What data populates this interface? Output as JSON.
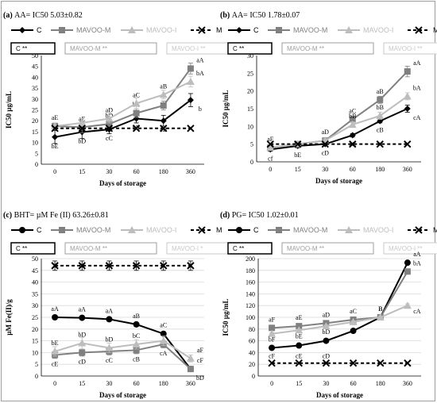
{
  "chart_data": [
    {
      "id": "a",
      "type": "line",
      "title_bold": "(a)",
      "title_rest": "AA= IC50 5.03±0.82",
      "xlabel": "Days of storage",
      "ylabel": "IC50 µg/mL",
      "categories": [
        "0",
        "15",
        "30",
        "60",
        "180",
        "360"
      ],
      "ylim": [
        0,
        50
      ],
      "yticks": [
        0,
        5,
        10,
        15,
        20,
        25,
        30,
        35,
        40,
        45,
        50
      ],
      "grid": false,
      "legend_placement": "top",
      "series": [
        {
          "name": "C",
          "color": "#000000",
          "marker": "diamond",
          "dash": "",
          "values": [
            12.5,
            14.8,
            16.0,
            21.0,
            20.0,
            29.5
          ],
          "errors": [
            3.0,
            3.0,
            2.0,
            2.0,
            2.5,
            3.0
          ],
          "labels": [
            "bE",
            "bD",
            "cC",
            "bB",
            "cB",
            "b"
          ]
        },
        {
          "name": "MAVOO-M",
          "color": "#808080",
          "marker": "square",
          "dash": "",
          "values": [
            17.5,
            17.0,
            18.5,
            23.5,
            27.0,
            44.0
          ],
          "errors": [
            1.5,
            2.5,
            2.0,
            2.0,
            2.0,
            2.5
          ],
          "labels": [
            "aE",
            "aE",
            "bD",
            "bC",
            "",
            "aA"
          ]
        },
        {
          "name": "MAVOO-I",
          "color": "#bdbdbd",
          "marker": "triangle",
          "dash": "",
          "values": [
            17.5,
            19.0,
            21.0,
            28.0,
            32.0,
            38.0
          ],
          "errors": [
            1.5,
            2.0,
            2.0,
            2.5,
            2.0,
            2.5
          ],
          "labels": [
            "",
            "",
            "aD",
            "aC",
            "aB",
            "bA"
          ]
        },
        {
          "name": "M",
          "color": "#000000",
          "marker": "x",
          "dash": "4,3",
          "values": [
            16.5,
            16.5,
            16.5,
            16.5,
            16.5,
            16.5
          ],
          "errors": [
            0,
            0,
            0,
            0,
            0,
            0
          ],
          "labels": [
            "",
            "",
            "",
            "",
            "",
            ""
          ]
        }
      ],
      "sig_boxes": [
        {
          "text": "C **",
          "color": "#000000"
        },
        {
          "text": "MAVOO-M **",
          "color": "#9e9e9e"
        },
        {
          "text": "MAVOO-I **",
          "color": "#c8c8c8"
        }
      ]
    },
    {
      "id": "b",
      "type": "line",
      "title_bold": "(b)",
      "title_rest": "AA= IC50 1.78±0.07",
      "xlabel": "Days of storage",
      "ylabel": "IC50 µg/mL",
      "categories": [
        "0",
        "15",
        "30",
        "60",
        "180",
        "360"
      ],
      "ylim": [
        0,
        30
      ],
      "yticks": [
        0,
        5,
        10,
        15,
        20,
        25,
        30
      ],
      "grid": false,
      "legend_placement": "top",
      "series": [
        {
          "name": "C",
          "color": "#000000",
          "marker": "diamond",
          "dash": "",
          "values": [
            3.5,
            4.5,
            5.0,
            7.5,
            11.5,
            15.0
          ],
          "errors": [
            0.5,
            0.5,
            0.5,
            0.5,
            0.5,
            1.0
          ],
          "labels": [
            "cf",
            "bE",
            "cD",
            "cC",
            "cB",
            "cA"
          ]
        },
        {
          "name": "MAVOO-M",
          "color": "#808080",
          "marker": "square",
          "dash": "",
          "values": [
            4.0,
            5.0,
            6.0,
            12.0,
            17.5,
            25.5
          ],
          "errors": [
            0.5,
            0.5,
            0.5,
            0.8,
            1.0,
            1.5
          ],
          "labels": [
            "aF",
            "",
            "aD",
            "aC",
            "aB",
            "aA"
          ]
        },
        {
          "name": "MAVOO-I",
          "color": "#bdbdbd",
          "marker": "triangle",
          "dash": "",
          "values": [
            4.0,
            5.0,
            6.0,
            10.5,
            13.0,
            18.5
          ],
          "errors": [
            0.5,
            0.5,
            0.5,
            0.8,
            1.0,
            1.0
          ],
          "labels": [
            "",
            "",
            "",
            "bB",
            "bB",
            "bA"
          ]
        },
        {
          "name": "M",
          "color": "#000000",
          "marker": "x",
          "dash": "4,3",
          "values": [
            5.0,
            5.0,
            5.0,
            5.0,
            5.0,
            5.0
          ],
          "errors": [
            0,
            0,
            0,
            0,
            0,
            0
          ],
          "labels": [
            "",
            "",
            "",
            "",
            "",
            ""
          ]
        }
      ],
      "sig_boxes": [
        {
          "text": "C **",
          "color": "#000000"
        },
        {
          "text": "MAVOO-M **",
          "color": "#9e9e9e"
        },
        {
          "text": "MAVOO-I **",
          "color": "#c8c8c8"
        }
      ]
    },
    {
      "id": "c",
      "type": "line",
      "title_bold": "(c)",
      "title_rest": "BHT= µM Fe (II) 63.26±0.81",
      "xlabel": "Days of storage",
      "ylabel": "µM Fe(II)/g",
      "categories": [
        "0",
        "15",
        "30",
        "60",
        "180",
        "360"
      ],
      "ylim": [
        0,
        50
      ],
      "yticks": [
        0,
        5,
        10,
        15,
        20,
        25,
        30,
        35,
        40,
        45,
        50
      ],
      "grid": true,
      "legend_placement": "top",
      "series": [
        {
          "name": "C",
          "color": "#000000",
          "marker": "circle",
          "dash": "",
          "values": [
            25.0,
            24.8,
            24.2,
            22.0,
            18.0,
            3.0
          ],
          "errors": [
            0.5,
            0.5,
            0.8,
            0.8,
            0.5,
            1.0
          ],
          "labels": [
            "aA",
            "aA",
            "aA",
            "aB",
            "aC",
            "cF"
          ]
        },
        {
          "name": "MAVOO-M",
          "color": "#808080",
          "marker": "square",
          "dash": "",
          "values": [
            9.0,
            10.0,
            10.5,
            11.0,
            13.5,
            3.0
          ],
          "errors": [
            1.5,
            1.5,
            1.5,
            1.5,
            1.5,
            1.0
          ],
          "labels": [
            "cE",
            "cD",
            "cC",
            "cB",
            "cA",
            "bD"
          ]
        },
        {
          "name": "MAVOO-I",
          "color": "#bdbdbd",
          "marker": "triangle",
          "dash": "",
          "values": [
            10.5,
            14.0,
            12.0,
            13.5,
            15.0,
            7.5
          ],
          "errors": [
            2.0,
            2.5,
            2.0,
            2.0,
            2.0,
            1.5
          ],
          "labels": [
            "bE",
            "bD",
            "bD",
            "bC",
            "",
            "aF"
          ]
        },
        {
          "name": "M",
          "color": "#000000",
          "marker": "x",
          "dash": "4,3",
          "values": [
            47.0,
            47.0,
            47.0,
            47.0,
            47.0,
            47.0
          ],
          "errors": [
            2.0,
            2.0,
            2.0,
            2.0,
            2.0,
            2.0
          ],
          "labels": [
            "",
            "",
            "",
            "",
            "",
            ""
          ]
        }
      ],
      "sig_boxes": [
        {
          "text": "C **",
          "color": "#000000"
        },
        {
          "text": "MAVOO-M **",
          "color": "#9e9e9e"
        },
        {
          "text": "MAVOO-I *",
          "color": "#c8c8c8"
        }
      ]
    },
    {
      "id": "d",
      "type": "line",
      "title_bold": "(d)",
      "title_rest": "PG= IC50 1.02±0.01",
      "xlabel": "Days of storage",
      "ylabel": "IC50 µg/mL",
      "categories": [
        "0",
        "15",
        "30",
        "60",
        "180",
        "360"
      ],
      "ylim": [
        0,
        200
      ],
      "yticks": [
        0,
        20,
        40,
        60,
        80,
        100,
        120,
        140,
        160,
        180,
        200
      ],
      "grid": true,
      "legend_placement": "top",
      "series": [
        {
          "name": "C",
          "color": "#000000",
          "marker": "circle",
          "dash": "",
          "values": [
            48,
            52,
            60,
            77,
            100,
            193
          ],
          "errors": [
            1.5,
            1.5,
            1.5,
            2,
            2,
            2
          ],
          "labels": [
            "",
            "",
            "",
            "bC",
            "B",
            "aA"
          ]
        },
        {
          "name": "MAVOO-M",
          "color": "#808080",
          "marker": "square",
          "dash": "",
          "values": [
            82,
            85,
            90,
            96,
            100,
            178
          ],
          "errors": [
            2,
            2,
            2,
            2,
            2,
            3
          ],
          "labels": [
            "aF",
            "aE",
            "aD",
            "aC",
            "B",
            "bA"
          ]
        },
        {
          "name": "MAVOO-I",
          "color": "#bdbdbd",
          "marker": "triangle",
          "dash": "",
          "values": [
            72,
            78,
            85,
            92,
            100,
            120
          ],
          "errors": [
            2,
            2,
            2,
            2,
            2,
            3
          ],
          "labels": [
            "bF",
            "bE",
            "bD",
            "",
            "",
            "cA"
          ]
        },
        {
          "name": "M",
          "color": "#000000",
          "marker": "x",
          "dash": "4,3",
          "values": [
            22,
            22,
            22,
            22,
            22,
            22
          ],
          "errors": [
            0,
            0,
            0,
            0,
            0,
            0
          ],
          "labels": [
            "cF",
            "cE",
            "cD",
            "",
            "",
            ""
          ]
        }
      ],
      "sig_boxes": [
        {
          "text": "C **",
          "color": "#000000"
        },
        {
          "text": "MAVOO-M **",
          "color": "#9e9e9e"
        },
        {
          "text": "MAVOO-I **",
          "color": "#c8c8c8"
        }
      ]
    }
  ]
}
